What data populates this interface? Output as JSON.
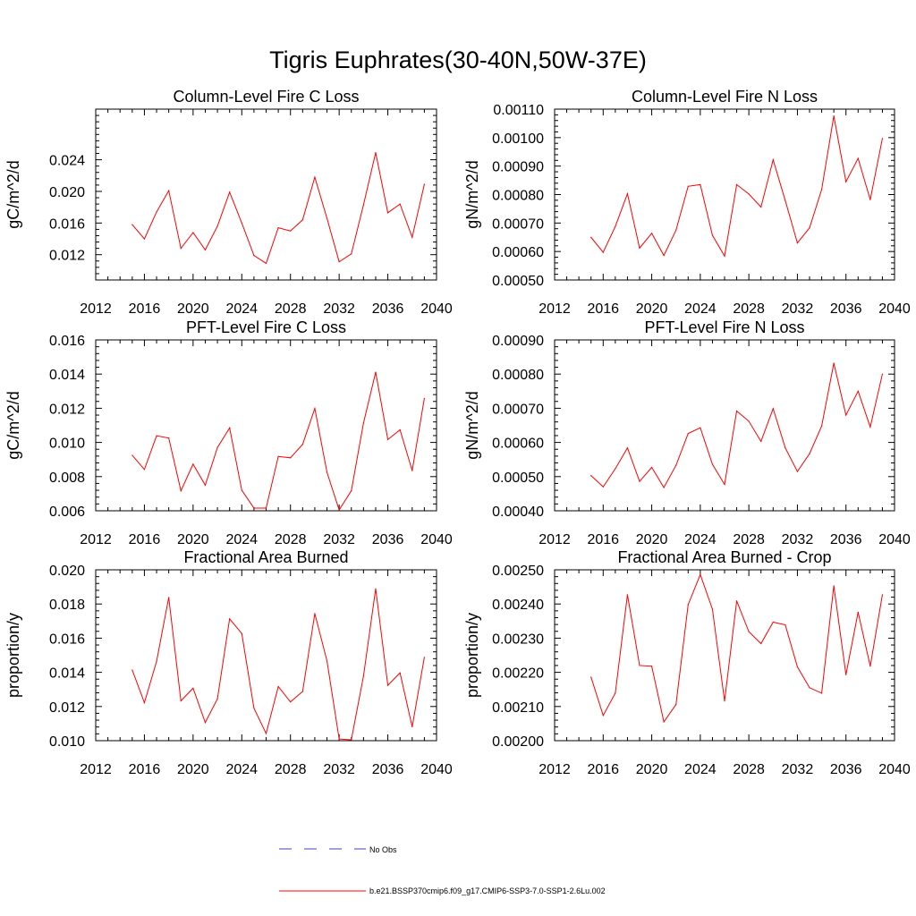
{
  "title": "Tigris Euphrates(30-40N,50W-37E)",
  "legend": {
    "obs_label": "No Obs",
    "obs_color": "#4040c0",
    "model_label": "b.e21.BSSP370cmip6.f09_g17.CMIP6-SSP3-7.0-SSP1-2.6Lu.002",
    "model_color": "#ff0000"
  },
  "chart_data": [
    {
      "type": "line",
      "title": "Column-Level Fire C Loss",
      "ylabel": "gC/m^2/d",
      "xlim": [
        2012,
        2040
      ],
      "ylim": [
        0.0088,
        0.0304
      ],
      "x_ticks": [
        "2012",
        "2016",
        "2020",
        "2024",
        "2028",
        "2032",
        "2036",
        "2040"
      ],
      "y_ticks": [
        "0.012",
        "0.016",
        "0.020",
        "0.024"
      ],
      "y_tick_values": [
        0.012,
        0.016,
        0.02,
        0.024
      ],
      "x": [
        2015,
        2016,
        2017,
        2018,
        2019,
        2020,
        2021,
        2022,
        2023,
        2024,
        2025,
        2026,
        2027,
        2028,
        2029,
        2030,
        2031,
        2032,
        2033,
        2034,
        2035,
        2036,
        2037,
        2038,
        2039
      ],
      "series": [
        {
          "values": [
            0.0158,
            0.014,
            0.0174,
            0.0201,
            0.0128,
            0.0148,
            0.0126,
            0.0156,
            0.0199,
            0.016,
            0.0119,
            0.0109,
            0.0154,
            0.015,
            0.0164,
            0.0218,
            0.0166,
            0.0111,
            0.0121,
            0.0183,
            0.0249,
            0.0173,
            0.0184,
            0.0142,
            0.0209
          ],
          "color": "#ff0000"
        }
      ]
    },
    {
      "type": "line",
      "title": "Column-Level Fire N Loss",
      "ylabel": "gN/m^2/d",
      "xlim": [
        2012,
        2040
      ],
      "ylim": [
        0.0005,
        0.0011
      ],
      "x_ticks": [
        "2012",
        "2016",
        "2020",
        "2024",
        "2028",
        "2032",
        "2036",
        "2040"
      ],
      "y_ticks": [
        "0.00050",
        "0.00060",
        "0.00070",
        "0.00080",
        "0.00090",
        "0.00100",
        "0.00110"
      ],
      "y_tick_values": [
        0.0005,
        0.0006,
        0.0007,
        0.0008,
        0.0009,
        0.001,
        0.0011
      ],
      "x": [
        2015,
        2016,
        2017,
        2018,
        2019,
        2020,
        2021,
        2022,
        2023,
        2024,
        2025,
        2026,
        2027,
        2028,
        2029,
        2030,
        2031,
        2032,
        2033,
        2034,
        2035,
        2036,
        2037,
        2038,
        2039
      ],
      "series": [
        {
          "values": [
            0.00065,
            0.000597,
            0.000688,
            0.000803,
            0.000612,
            0.000664,
            0.000586,
            0.000675,
            0.000829,
            0.000835,
            0.000657,
            0.000584,
            0.000835,
            0.000802,
            0.000756,
            0.000922,
            0.000779,
            0.00063,
            0.000683,
            0.000818,
            0.001076,
            0.000845,
            0.000927,
            0.000782,
            0.000997
          ],
          "color": "#ff0000"
        }
      ]
    },
    {
      "type": "line",
      "title": "PFT-Level Fire C Loss",
      "ylabel": "gC/m^2/d",
      "xlim": [
        2012,
        2040
      ],
      "ylim": [
        0.006,
        0.016
      ],
      "x_ticks": [
        "2012",
        "2016",
        "2020",
        "2024",
        "2028",
        "2032",
        "2036",
        "2040"
      ],
      "y_ticks": [
        "0.006",
        "0.008",
        "0.010",
        "0.012",
        "0.014",
        "0.016"
      ],
      "y_tick_values": [
        0.006,
        0.008,
        0.01,
        0.012,
        0.014,
        0.016
      ],
      "x": [
        2015,
        2016,
        2017,
        2018,
        2019,
        2020,
        2021,
        2022,
        2023,
        2024,
        2025,
        2026,
        2027,
        2028,
        2029,
        2030,
        2031,
        2032,
        2033,
        2034,
        2035,
        2036,
        2037,
        2038,
        2039
      ],
      "series": [
        {
          "values": [
            0.00925,
            0.00842,
            0.01039,
            0.01026,
            0.00717,
            0.00873,
            0.0075,
            0.0097,
            0.01085,
            0.0072,
            0.00616,
            0.00616,
            0.00918,
            0.0091,
            0.00989,
            0.01199,
            0.00825,
            0.00605,
            0.00717,
            0.01114,
            0.01411,
            0.01017,
            0.01074,
            0.00835,
            0.01258
          ],
          "color": "#ff0000"
        }
      ]
    },
    {
      "type": "line",
      "title": "PFT-Level Fire N Loss",
      "ylabel": "gN/m^2/d",
      "xlim": [
        2012,
        2040
      ],
      "ylim": [
        0.0004,
        0.0009
      ],
      "x_ticks": [
        "2012",
        "2016",
        "2020",
        "2024",
        "2028",
        "2032",
        "2036",
        "2040"
      ],
      "y_ticks": [
        "0.00040",
        "0.00050",
        "0.00060",
        "0.00070",
        "0.00080",
        "0.00090"
      ],
      "y_tick_values": [
        0.0004,
        0.0005,
        0.0006,
        0.0007,
        0.0008,
        0.0009
      ],
      "x": [
        2015,
        2016,
        2017,
        2018,
        2019,
        2020,
        2021,
        2022,
        2023,
        2024,
        2025,
        2026,
        2027,
        2028,
        2029,
        2030,
        2031,
        2032,
        2033,
        2034,
        2035,
        2036,
        2037,
        2038,
        2039
      ],
      "series": [
        {
          "values": [
            0.000503,
            0.00047,
            0.000523,
            0.000584,
            0.000486,
            0.000527,
            0.000468,
            0.000533,
            0.000626,
            0.000643,
            0.000536,
            0.000477,
            0.000692,
            0.000662,
            0.000603,
            0.000699,
            0.000584,
            0.000515,
            0.000567,
            0.000648,
            0.000832,
            0.00068,
            0.00075,
            0.000645,
            0.0008
          ],
          "color": "#ff0000"
        }
      ]
    },
    {
      "type": "line",
      "title": "Fractional Area Burned",
      "ylabel": "proportion/y",
      "xlim": [
        2012,
        2040
      ],
      "ylim": [
        0.01,
        0.02
      ],
      "x_ticks": [
        "2012",
        "2016",
        "2020",
        "2024",
        "2028",
        "2032",
        "2036",
        "2040"
      ],
      "y_ticks": [
        "0.010",
        "0.012",
        "0.014",
        "0.016",
        "0.018",
        "0.020"
      ],
      "y_tick_values": [
        0.01,
        0.012,
        0.014,
        0.016,
        0.018,
        0.02
      ],
      "x": [
        2015,
        2016,
        2017,
        2018,
        2019,
        2020,
        2021,
        2022,
        2023,
        2024,
        2025,
        2026,
        2027,
        2028,
        2029,
        2030,
        2031,
        2032,
        2033,
        2034,
        2035,
        2036,
        2037,
        2038,
        2039
      ],
      "series": [
        {
          "values": [
            0.01414,
            0.01222,
            0.01464,
            0.01838,
            0.01233,
            0.01307,
            0.01106,
            0.01245,
            0.01713,
            0.01627,
            0.0119,
            0.01042,
            0.01317,
            0.01227,
            0.01288,
            0.01744,
            0.01467,
            0.0101,
            0.01005,
            0.01378,
            0.01889,
            0.01324,
            0.01397,
            0.01081,
            0.01488
          ],
          "color": "#ff0000"
        }
      ]
    },
    {
      "type": "line",
      "title": "Fractional Area Burned - Crop",
      "ylabel": "proportion/y",
      "xlim": [
        2012,
        2040
      ],
      "ylim": [
        0.002,
        0.0025
      ],
      "x_ticks": [
        "2012",
        "2016",
        "2020",
        "2024",
        "2028",
        "2032",
        "2036",
        "2040"
      ],
      "y_ticks": [
        "0.00200",
        "0.00210",
        "0.00220",
        "0.00230",
        "0.00240",
        "0.00250"
      ],
      "y_tick_values": [
        0.002,
        0.0021,
        0.0022,
        0.0023,
        0.0024,
        0.0025
      ],
      "x": [
        2015,
        2016,
        2017,
        2018,
        2019,
        2020,
        2021,
        2022,
        2023,
        2024,
        2025,
        2026,
        2027,
        2028,
        2029,
        2030,
        2031,
        2032,
        2033,
        2034,
        2035,
        2036,
        2037,
        2038,
        2039
      ],
      "series": [
        {
          "values": [
            0.002186,
            0.002074,
            0.002139,
            0.002427,
            0.00222,
            0.002218,
            0.002055,
            0.002106,
            0.002398,
            0.002486,
            0.002385,
            0.002116,
            0.002409,
            0.002319,
            0.002284,
            0.002347,
            0.002339,
            0.002216,
            0.002155,
            0.002139,
            0.002453,
            0.002193,
            0.002376,
            0.002218,
            0.002427
          ],
          "color": "#ff0000"
        }
      ]
    }
  ]
}
